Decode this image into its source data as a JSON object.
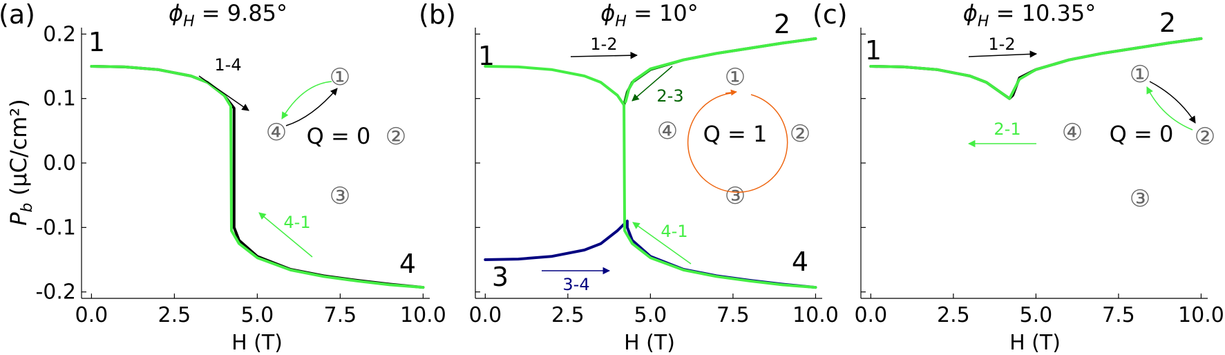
{
  "figure": {
    "ylabel_main": "P",
    "ylabel_sub": "b",
    "ylabel_unit": " (μC/cm²)",
    "xlabel": "H (T)"
  },
  "chart_data": [
    {
      "type": "line",
      "panel_label": "(a)",
      "title": "φH = 9.85°",
      "title_sym": "ϕ",
      "title_sub": "H",
      "title_val": " = 9.85°",
      "xlabel": "H (T)",
      "ylabel": "Pb (μC/cm²)",
      "xlim": [
        -0.3,
        10.2
      ],
      "ylim": [
        -0.21,
        0.21
      ],
      "xticks": [
        "0.0",
        "2.5",
        "5.0",
        "7.5",
        "10.0"
      ],
      "xtick_values": [
        0,
        2.5,
        5,
        7.5,
        10
      ],
      "yticks": [
        "-0.2",
        "-0.1",
        "0.0",
        "0.1",
        "0.2"
      ],
      "ytick_values": [
        -0.2,
        -0.1,
        0,
        0.1,
        0.2
      ],
      "series": [
        {
          "color": "#000000",
          "points": [
            [
              0,
              0.15
            ],
            [
              1,
              0.149
            ],
            [
              2,
              0.145
            ],
            [
              3,
              0.135
            ],
            [
              3.5,
              0.125
            ],
            [
              4,
              0.105
            ],
            [
              4.3,
              0.085
            ],
            [
              4.3,
              -0.1
            ],
            [
              4.45,
              -0.12
            ],
            [
              5,
              -0.145
            ],
            [
              6,
              -0.165
            ],
            [
              7,
              -0.175
            ],
            [
              8,
              -0.182
            ],
            [
              9,
              -0.188
            ],
            [
              10,
              -0.193
            ]
          ]
        },
        {
          "color": "#44ee44",
          "points": [
            [
              0,
              0.15
            ],
            [
              1,
              0.149
            ],
            [
              2,
              0.145
            ],
            [
              3,
              0.135
            ],
            [
              3.5,
              0.125
            ],
            [
              4,
              0.105
            ],
            [
              4.2,
              0.088
            ],
            [
              4.22,
              -0.105
            ],
            [
              4.45,
              -0.125
            ],
            [
              5,
              -0.147
            ],
            [
              6,
              -0.166
            ],
            [
              7,
              -0.176
            ],
            [
              8,
              -0.183
            ],
            [
              9,
              -0.189
            ],
            [
              10,
              -0.193
            ]
          ]
        }
      ],
      "state_labels": [
        {
          "text": "1",
          "color": "#000000"
        },
        {
          "text": "4",
          "color": "#000000"
        }
      ],
      "arrows": [
        {
          "label": "1-4",
          "color": "#000000"
        },
        {
          "label": "4-1",
          "color": "#44ee44"
        }
      ],
      "inset": {
        "charge": "Q = 0",
        "nodes": [
          "①",
          "②",
          "③",
          "④"
        ]
      }
    },
    {
      "type": "line",
      "panel_label": "(b)",
      "title": "φH = 10°",
      "title_sym": "ϕ",
      "title_sub": "H",
      "title_val": " = 10°",
      "xlabel": "H (T)",
      "ylabel": "Pb (μC/cm²)",
      "xlim": [
        -0.3,
        10.2
      ],
      "ylim": [
        -0.21,
        0.21
      ],
      "xticks": [
        "0.0",
        "2.5",
        "5.0",
        "7.5",
        "10.0"
      ],
      "xtick_values": [
        0,
        2.5,
        5,
        7.5,
        10
      ],
      "yticks": [],
      "ytick_values": [
        -0.2,
        -0.1,
        0,
        0.1,
        0.2
      ],
      "series": [
        {
          "color": "#006400",
          "points": [
            [
              4.2,
              0.09
            ],
            [
              4.3,
              0.11
            ],
            [
              4.45,
              0.125
            ],
            [
              5,
              0.145
            ],
            [
              6,
              0.16
            ],
            [
              7,
              0.17
            ],
            [
              8,
              0.178
            ],
            [
              9,
              0.186
            ],
            [
              10,
              0.193
            ]
          ]
        },
        {
          "color": "#000080",
          "points": [
            [
              0,
              -0.15
            ],
            [
              1,
              -0.149
            ],
            [
              2,
              -0.145
            ],
            [
              3,
              -0.135
            ],
            [
              3.5,
              -0.125
            ],
            [
              4,
              -0.105
            ],
            [
              4.3,
              -0.09
            ],
            [
              4.3,
              -0.1
            ],
            [
              4.45,
              -0.12
            ],
            [
              5,
              -0.145
            ],
            [
              6,
              -0.165
            ],
            [
              7,
              -0.175
            ],
            [
              8,
              -0.182
            ],
            [
              9,
              -0.188
            ],
            [
              10,
              -0.193
            ]
          ]
        },
        {
          "color": "#44ee44",
          "points": [
            [
              0,
              0.15
            ],
            [
              1,
              0.149
            ],
            [
              2,
              0.145
            ],
            [
              3,
              0.135
            ],
            [
              3.5,
              0.125
            ],
            [
              4,
              0.105
            ],
            [
              4.2,
              0.09
            ],
            [
              4.22,
              -0.105
            ],
            [
              4.45,
              -0.125
            ],
            [
              5,
              -0.147
            ],
            [
              6,
              -0.166
            ],
            [
              7,
              -0.176
            ],
            [
              8,
              -0.183
            ],
            [
              9,
              -0.189
            ],
            [
              10,
              -0.193
            ]
          ]
        },
        {
          "color": "#44ee44",
          "points": [
            [
              4.25,
              0.095
            ],
            [
              4.35,
              0.115
            ],
            [
              4.5,
              0.128
            ],
            [
              5,
              0.146
            ],
            [
              6,
              0.16
            ],
            [
              7,
              0.17
            ],
            [
              8,
              0.178
            ],
            [
              9,
              0.186
            ],
            [
              10,
              0.193
            ]
          ]
        }
      ],
      "state_labels": [
        {
          "text": "1",
          "color": "#000000"
        },
        {
          "text": "2",
          "color": "#000000"
        },
        {
          "text": "3",
          "color": "#000000"
        },
        {
          "text": "4",
          "color": "#000000"
        }
      ],
      "arrows": [
        {
          "label": "1-2",
          "color": "#000000"
        },
        {
          "label": "2-3",
          "color": "#006400"
        },
        {
          "label": "3-4",
          "color": "#000080"
        },
        {
          "label": "4-1",
          "color": "#44ee44"
        }
      ],
      "inset": {
        "charge": "Q = 1",
        "nodes": [
          "①",
          "②",
          "③",
          "④"
        ],
        "loop_color": "#ee6611"
      }
    },
    {
      "type": "line",
      "panel_label": "(c)",
      "title": "φH = 10.35°",
      "title_sym": "ϕ",
      "title_sub": "H",
      "title_val": " = 10.35°",
      "xlabel": "H (T)",
      "ylabel": "Pb (μC/cm²)",
      "xlim": [
        -0.3,
        10.2
      ],
      "ylim": [
        -0.21,
        0.21
      ],
      "xticks": [
        "0.0",
        "2.5",
        "5.0",
        "7.5",
        "10.0"
      ],
      "xtick_values": [
        0,
        2.5,
        5,
        7.5,
        10
      ],
      "yticks": [],
      "ytick_values": [
        -0.2,
        -0.1,
        0,
        0.1,
        0.2
      ],
      "series": [
        {
          "color": "#000000",
          "points": [
            [
              0,
              0.15
            ],
            [
              1,
              0.149
            ],
            [
              2,
              0.145
            ],
            [
              3,
              0.135
            ],
            [
              3.5,
              0.125
            ],
            [
              4,
              0.107
            ],
            [
              4.2,
              0.1
            ],
            [
              4.3,
              0.105
            ],
            [
              4.5,
              0.132
            ],
            [
              5,
              0.145
            ],
            [
              6,
              0.16
            ],
            [
              7,
              0.17
            ],
            [
              8,
              0.178
            ],
            [
              9,
              0.186
            ],
            [
              10,
              0.193
            ]
          ]
        },
        {
          "color": "#44ee44",
          "points": [
            [
              0,
              0.15
            ],
            [
              1,
              0.149
            ],
            [
              2,
              0.145
            ],
            [
              3,
              0.135
            ],
            [
              3.5,
              0.125
            ],
            [
              4,
              0.107
            ],
            [
              4.2,
              0.1
            ],
            [
              4.35,
              0.115
            ],
            [
              4.5,
              0.13
            ],
            [
              5,
              0.145
            ],
            [
              6,
              0.16
            ],
            [
              7,
              0.17
            ],
            [
              8,
              0.178
            ],
            [
              9,
              0.186
            ],
            [
              10,
              0.193
            ]
          ]
        }
      ],
      "state_labels": [
        {
          "text": "1",
          "color": "#000000"
        },
        {
          "text": "2",
          "color": "#000000"
        }
      ],
      "arrows": [
        {
          "label": "1-2",
          "color": "#000000"
        },
        {
          "label": "2-1",
          "color": "#44ee44"
        }
      ],
      "inset": {
        "charge": "Q = 0",
        "nodes": [
          "①",
          "②",
          "③",
          "④"
        ]
      }
    }
  ]
}
